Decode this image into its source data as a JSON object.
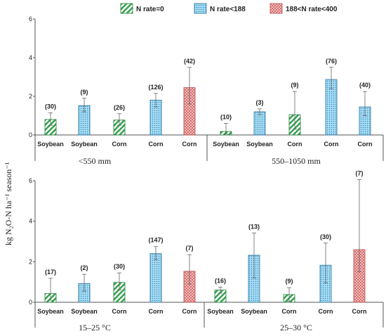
{
  "chart_data": {
    "type": "bar",
    "ylabel": "kg N₂O-N ha⁻¹ season⁻¹",
    "legend": {
      "placement": "top-center",
      "entries": [
        {
          "name": "N rate=0",
          "fill": "#2e9e4a",
          "pattern": "diagonal-hatch"
        },
        {
          "name": "N rate<188",
          "fill": "#6ec6ea",
          "pattern": "dotted"
        },
        {
          "name": "188<N rate<400",
          "fill": "#e88a8a",
          "pattern": "cross-hatch"
        }
      ]
    },
    "panels": [
      {
        "ylim": [
          0,
          6
        ],
        "yticks": [
          0,
          2,
          4,
          6
        ],
        "groups": [
          {
            "label": "<550 mm",
            "bars": [
              {
                "category": "Soybean",
                "series": "N rate=0",
                "value": 0.8,
                "err_low": 0.5,
                "err_high": 1.15,
                "n": "(30)"
              },
              {
                "category": "Soybean",
                "series": "N rate<188",
                "value": 1.52,
                "err_low": 1.2,
                "err_high": 1.9,
                "n": "(9)"
              },
              {
                "category": "Corn",
                "series": "N rate=0",
                "value": 0.77,
                "err_low": 0.5,
                "err_high": 1.1,
                "n": "(26)"
              },
              {
                "category": "Corn",
                "series": "N rate<188",
                "value": 1.8,
                "err_low": 1.45,
                "err_high": 2.15,
                "n": "(126)"
              },
              {
                "category": "Corn",
                "series": "188<N rate<400",
                "value": 2.45,
                "err_low": 1.6,
                "err_high": 3.5,
                "n": "(42)"
              }
            ]
          },
          {
            "label": "550–1050 mm",
            "bars": [
              {
                "category": "Soybean",
                "series": "N rate=0",
                "value": 0.18,
                "err_low": 0.05,
                "err_high": 0.6,
                "n": "(10)"
              },
              {
                "category": "Soybean",
                "series": "N rate<188",
                "value": 1.2,
                "err_low": 1.05,
                "err_high": 1.35,
                "n": "(3)"
              },
              {
                "category": "Corn",
                "series": "N rate=0",
                "value": 1.05,
                "err_low": 0.3,
                "err_high": 2.25,
                "n": "(9)"
              },
              {
                "category": "Corn",
                "series": "N rate<188",
                "value": 2.87,
                "err_low": 2.4,
                "err_high": 3.5,
                "n": "(76)"
              },
              {
                "category": "Corn",
                "series": "N rate<188",
                "value": 1.45,
                "err_low": 1.0,
                "err_high": 2.25,
                "n": "(40)"
              }
            ]
          }
        ]
      },
      {
        "ylim": [
          0,
          6
        ],
        "yticks": [
          0,
          2,
          4,
          6
        ],
        "groups": [
          {
            "label": "15–25 °C",
            "bars": [
              {
                "category": "Soybean",
                "series": "N rate=0",
                "value": 0.43,
                "err_low": 0.1,
                "err_high": 1.18,
                "n": "(17)"
              },
              {
                "category": "Soybean",
                "series": "N rate<188",
                "value": 0.92,
                "err_low": 0.55,
                "err_high": 1.38,
                "n": "(2)"
              },
              {
                "category": "Corn",
                "series": "N rate=0",
                "value": 0.98,
                "err_low": 0.6,
                "err_high": 1.45,
                "n": "(30)"
              },
              {
                "category": "Corn",
                "series": "N rate<188",
                "value": 2.4,
                "err_low": 2.1,
                "err_high": 2.75,
                "n": "(147)"
              },
              {
                "category": "Corn",
                "series": "188<N rate<400",
                "value": 1.53,
                "err_low": 0.9,
                "err_high": 2.35,
                "n": "(7)"
              }
            ]
          },
          {
            "label": "25–30 °C",
            "bars": [
              {
                "category": "Soybean",
                "series": "N rate=0",
                "value": 0.6,
                "err_low": 0.45,
                "err_high": 0.75,
                "n": "(16)"
              },
              {
                "category": "Soybean",
                "series": "N rate<188",
                "value": 2.32,
                "err_low": 1.2,
                "err_high": 3.42,
                "n": "(13)"
              },
              {
                "category": "Corn",
                "series": "N rate=0",
                "value": 0.38,
                "err_low": 0.05,
                "err_high": 0.72,
                "n": "(9)"
              },
              {
                "category": "Corn",
                "series": "N rate<188",
                "value": 1.83,
                "err_low": 0.95,
                "err_high": 2.92,
                "n": "(30)"
              },
              {
                "category": "Corn",
                "series": "188<N rate<400",
                "value": 2.6,
                "err_low": 1.5,
                "err_high": 6.05,
                "n": "(7)"
              }
            ]
          }
        ]
      }
    ]
  }
}
